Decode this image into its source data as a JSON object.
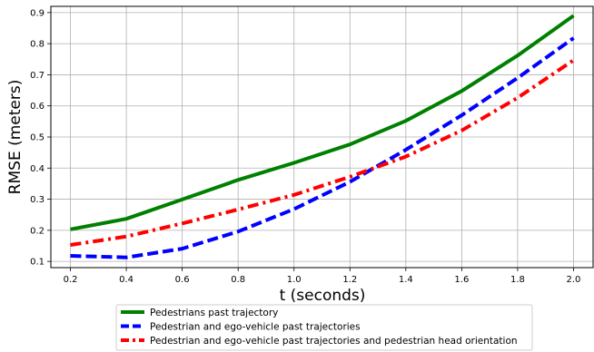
{
  "chart_data": {
    "type": "line",
    "title": "",
    "xlabel": "t (seconds)",
    "ylabel": "RMSE (meters)",
    "x": [
      0.2,
      0.4,
      0.6,
      0.8,
      1.0,
      1.2,
      1.4,
      1.6,
      1.8,
      2.0
    ],
    "xlim": [
      0.13,
      2.07
    ],
    "ylim": [
      0.08,
      0.92
    ],
    "xticks": [
      "0.2",
      "0.4",
      "0.6",
      "0.8",
      "1.0",
      "1.2",
      "1.4",
      "1.6",
      "1.8",
      "2.0"
    ],
    "yticks": [
      "0.1",
      "0.2",
      "0.3",
      "0.4",
      "0.5",
      "0.6",
      "0.7",
      "0.8",
      "0.9"
    ],
    "grid": true,
    "legend_position": "bottom",
    "series": [
      {
        "name": "Pedestrians past trajectory",
        "color": "#008000",
        "style": "solid",
        "values": [
          0.203,
          0.237,
          0.299,
          0.362,
          0.417,
          0.476,
          0.552,
          0.648,
          0.762,
          0.89
        ]
      },
      {
        "name": "Pedestrian and ego-vehicle past trajectories",
        "color": "#0000ff",
        "style": "dashed",
        "values": [
          0.118,
          0.113,
          0.141,
          0.196,
          0.268,
          0.356,
          0.459,
          0.57,
          0.69,
          0.818
        ]
      },
      {
        "name": "Pedestrian and ego-vehicle past trajectories and pedestrian head orientation",
        "color": "#ff0000",
        "style": "dashdot",
        "values": [
          0.153,
          0.18,
          0.222,
          0.267,
          0.314,
          0.372,
          0.437,
          0.521,
          0.626,
          0.747
        ]
      }
    ]
  }
}
